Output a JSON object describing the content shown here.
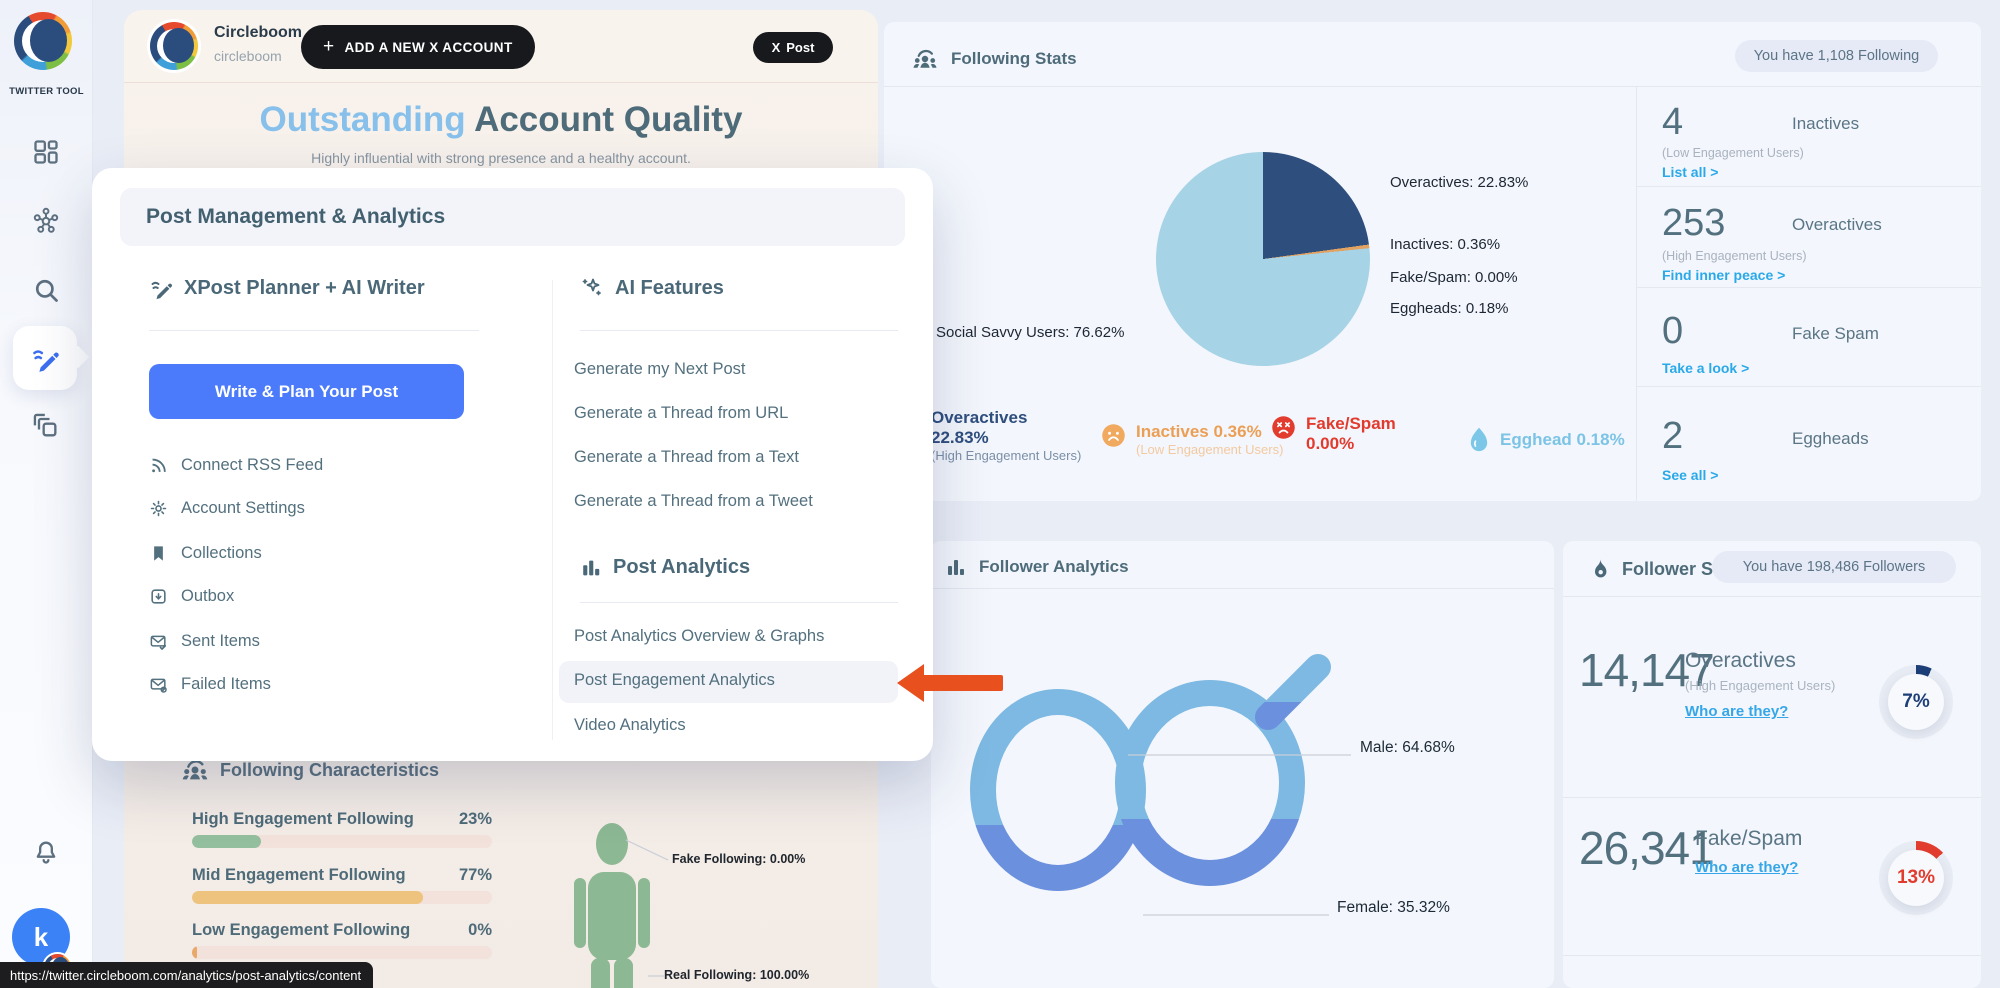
{
  "sidebar": {
    "brand": "TWITTER TOOL",
    "avatar_letter": "k"
  },
  "account_header": {
    "name": "Circleboom",
    "handle": "circleboom",
    "add_button": "ADD A NEW X ACCOUNT",
    "plus": "+",
    "x_glyph": "X",
    "post_button": "Post"
  },
  "quality": {
    "title_highlight": "Outstanding",
    "title_rest": " Account Quality",
    "subtitle": "Highly influential with strong presence and a healthy account."
  },
  "menu": {
    "title": "Post Management & Analytics",
    "planner": {
      "heading": "XPost Planner + AI Writer",
      "cta": "Write & Plan Your Post",
      "items": [
        {
          "label": "Connect RSS Feed"
        },
        {
          "label": "Account Settings"
        },
        {
          "label": "Collections"
        },
        {
          "label": "Outbox"
        },
        {
          "label": "Sent Items"
        },
        {
          "label": "Failed Items"
        }
      ]
    },
    "ai": {
      "heading": "AI Features",
      "items": [
        {
          "label": "Generate my Next Post"
        },
        {
          "label": "Generate a Thread from URL"
        },
        {
          "label": "Generate a Thread from a Text"
        },
        {
          "label": "Generate a Thread from a Tweet"
        }
      ]
    },
    "analytics": {
      "heading": "Post Analytics",
      "items": [
        {
          "label": "Post Analytics Overview & Graphs"
        },
        {
          "label": "Post Engagement Analytics"
        },
        {
          "label": "Video Analytics"
        }
      ],
      "highlighted": "Post Engagement Analytics"
    }
  },
  "following_stats": {
    "title": "Following Stats",
    "badge": "You have 1,108 Following",
    "label_left": "Social Savvy Users: 76.62%",
    "labels_right": [
      "Overactives: 22.83%",
      "Inactives: 0.36%",
      "Fake/Spam: 0.00%",
      "Eggheads: 0.18%"
    ],
    "pie_slices": [
      {
        "color": "#2e4e7e",
        "pct": 22.83
      },
      {
        "color": "#e2a262",
        "pct": 0.55
      },
      {
        "color": "#a7d3e6",
        "pct": 76.62
      }
    ],
    "legend": {
      "overactives_label": "Overactives",
      "overactives_pct": "22.83%",
      "overactives_sub": "(High Engagement Users)",
      "inactives": "Inactives 0.36%",
      "inactives_sub": "(Low Engagement Users)",
      "fake_line1": "Fake/Spam",
      "fake_line2": "0.00%",
      "egghead": "Egghead 0.18%"
    },
    "rows": [
      {
        "value": "4",
        "label": "Inactives",
        "sub": "(Low Engagement Users)",
        "link": "List all >"
      },
      {
        "value": "253",
        "label": "Overactives",
        "sub": "(High Engagement Users)",
        "link": "Find inner peace >"
      },
      {
        "value": "0",
        "label": "Fake Spam",
        "sub": "",
        "link": "Take a look >"
      },
      {
        "value": "2",
        "label": "Eggheads",
        "sub": "",
        "link": "See all >"
      }
    ]
  },
  "follower_analytics": {
    "title": "Follower Analytics",
    "male_label": "Male: 64.68%",
    "female_label": "Female: 35.32%"
  },
  "follower_stats": {
    "title": "Follower St",
    "badge": "You have 198,486 Followers",
    "rows": [
      {
        "value": "14,147",
        "label": "Overactives",
        "sub": "(High Engagement Users)",
        "link": "Who are they?",
        "pct": "7%",
        "pct_num": 7,
        "color": "#1d3f77"
      },
      {
        "value": "26,341",
        "label": "Fake/Spam",
        "sub": "",
        "link": "Who are they?",
        "pct": "13%",
        "pct_num": 13,
        "color": "#e23c2e"
      }
    ]
  },
  "characteristics": {
    "title": "Following Characteristics",
    "bars": [
      {
        "label": "High Engagement Following",
        "value": "23%",
        "num": 23,
        "color": "#94bf9f"
      },
      {
        "label": "Mid Engagement Following",
        "value": "77%",
        "num": 77,
        "color": "#edc37d"
      },
      {
        "label": "Low Engagement Following",
        "value": "0%",
        "num": 0,
        "color": "#e8a96b"
      }
    ],
    "fake_label": "Fake Following: 0.00%",
    "real_label": "Real Following: 100.00%"
  },
  "statusbar": {
    "url": "https://twitter.circleboom.com/analytics/post-analytics/content"
  },
  "chart_data": [
    {
      "type": "pie",
      "title": "Following Stats",
      "categories": [
        "Social Savvy Users",
        "Overactives",
        "Inactives",
        "Fake/Spam",
        "Eggheads"
      ],
      "values": [
        76.62,
        22.83,
        0.36,
        0.0,
        0.18
      ],
      "colors": [
        "#a7d3e6",
        "#2e4e7e",
        "#e2a262",
        "#e23c2e",
        "#7cc4e6"
      ],
      "legend_position": "bottom"
    },
    {
      "type": "bar",
      "title": "Following Characteristics",
      "categories": [
        "High Engagement Following",
        "Mid Engagement Following",
        "Low Engagement Following"
      ],
      "values": [
        23,
        77,
        0
      ],
      "xlabel": "",
      "ylabel": "",
      "ylim": [
        0,
        100
      ]
    },
    {
      "type": "pie",
      "title": "Follower Analytics (gender)",
      "categories": [
        "Male",
        "Female"
      ],
      "values": [
        64.68,
        35.32
      ]
    },
    {
      "type": "pie",
      "title": "Follower Stats donuts",
      "series": [
        {
          "name": "Overactives share of followers",
          "values": [
            7,
            93
          ]
        },
        {
          "name": "Fake/Spam share of followers",
          "values": [
            13,
            87
          ]
        }
      ]
    },
    {
      "type": "pie",
      "title": "Real vs Fake Following",
      "categories": [
        "Real Following",
        "Fake Following"
      ],
      "values": [
        100.0,
        0.0
      ]
    }
  ]
}
